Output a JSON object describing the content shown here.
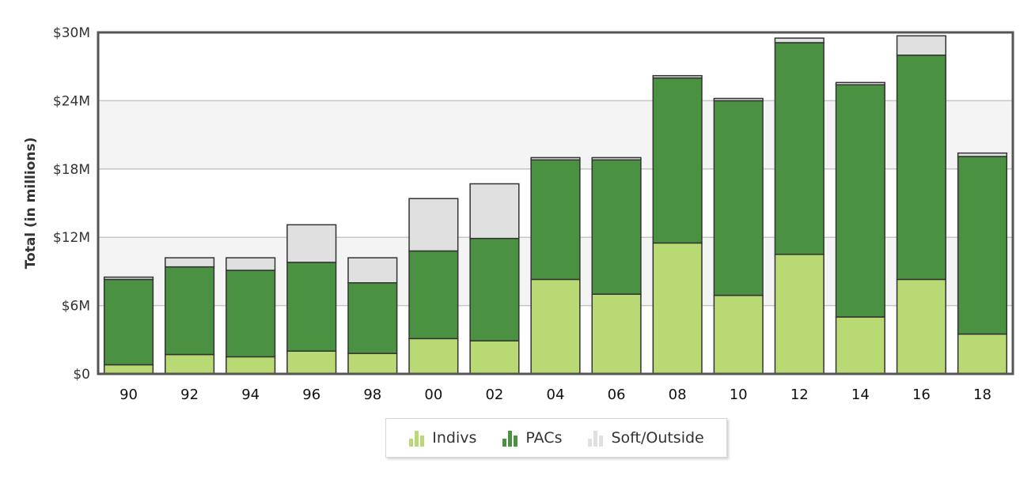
{
  "chart_data": {
    "type": "bar",
    "stacked": true,
    "categories": [
      "90",
      "92",
      "94",
      "96",
      "98",
      "00",
      "02",
      "04",
      "06",
      "08",
      "10",
      "12",
      "14",
      "16",
      "18"
    ],
    "series": [
      {
        "name": "Indivs",
        "color": "#b8d973",
        "values": [
          0.8,
          1.7,
          1.5,
          2.0,
          1.8,
          3.1,
          2.9,
          8.3,
          7.0,
          11.5,
          6.9,
          10.5,
          5.0,
          8.3,
          3.5
        ]
      },
      {
        "name": "PACs",
        "color": "#4a9142",
        "values": [
          7.5,
          7.7,
          7.6,
          7.8,
          6.2,
          7.7,
          9.0,
          10.5,
          11.8,
          14.5,
          17.1,
          18.6,
          20.4,
          19.7,
          15.6
        ]
      },
      {
        "name": "Soft/Outside",
        "color": "#e0e0e0",
        "values": [
          0.2,
          0.8,
          1.1,
          3.3,
          2.2,
          4.6,
          4.8,
          0.2,
          0.2,
          0.2,
          0.2,
          0.4,
          0.2,
          1.7,
          0.3
        ]
      }
    ],
    "ylabel": "Total (in millions)",
    "ylim": [
      0,
      30
    ],
    "yticks": [
      {
        "value": 0,
        "label": "$0"
      },
      {
        "value": 6,
        "label": "$6M"
      },
      {
        "value": 12,
        "label": "$12M"
      },
      {
        "value": 18,
        "label": "$18M"
      },
      {
        "value": 24,
        "label": "$24M"
      },
      {
        "value": 30,
        "label": "$30M"
      }
    ],
    "grid": true,
    "legend_position": "bottom-center"
  }
}
